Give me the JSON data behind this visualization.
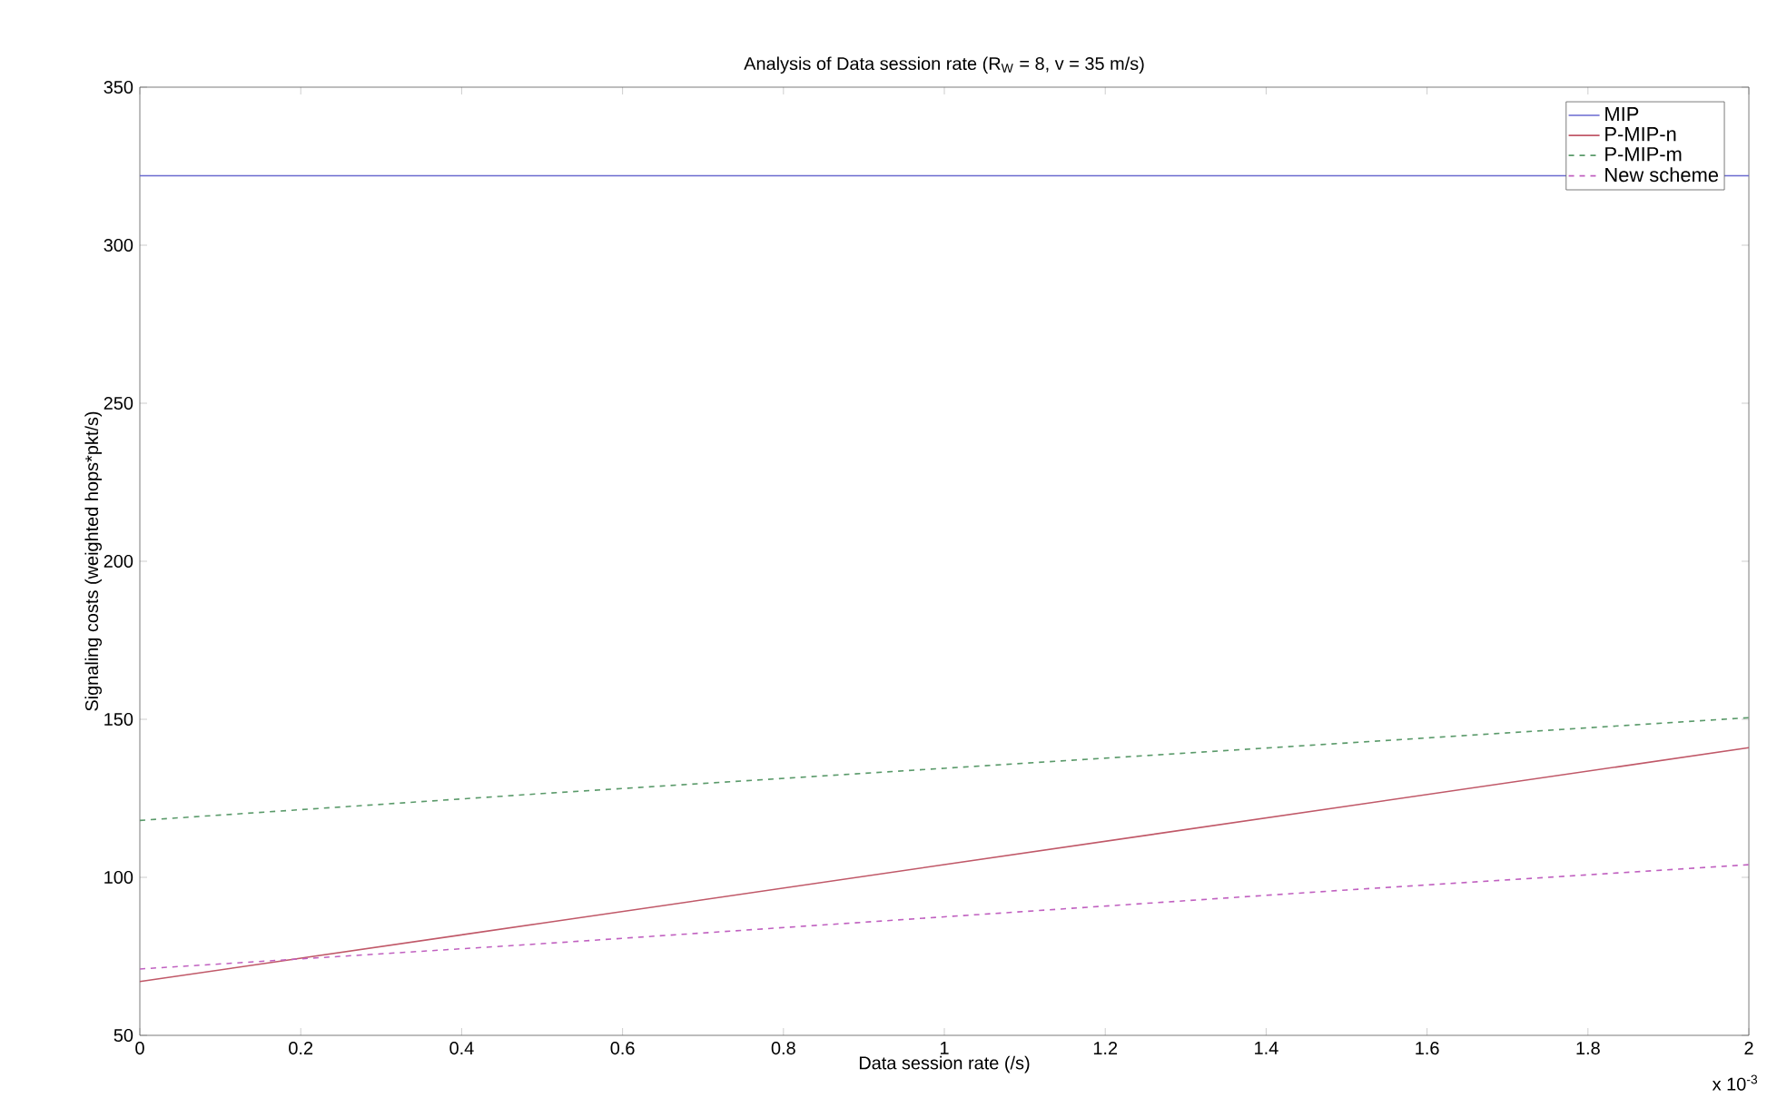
{
  "chart_data": {
    "type": "line",
    "title": "Analysis of Data session rate (R$_{W}$ = 8, v = 35 m/s)",
    "xlabel": "Data session rate (/s)",
    "ylabel": "Signaling costs (weighted hops*pkt/s)",
    "x": [
      0,
      0.5,
      1,
      1.5,
      2
    ],
    "series": [
      {
        "name": "MIP",
        "color": "#6a6ad0",
        "values": [
          322,
          322,
          322,
          322,
          322
        ],
        "line_style": "solid"
      },
      {
        "name": "P-MIP-n",
        "color": "#c05868",
        "values": [
          67,
          85.5,
          104,
          122.5,
          141
        ],
        "line_style": "solid"
      },
      {
        "name": "P-MIP-m",
        "color": "#5a9a6a",
        "values": [
          118,
          126.5,
          134.5,
          142.5,
          150.5
        ],
        "line_style": "dashed"
      },
      {
        "name": "New scheme",
        "color": "#c060c0",
        "values": [
          71,
          79,
          87.5,
          96,
          104
        ],
        "line_style": "dashed"
      }
    ],
    "xlim": [
      0,
      2
    ],
    "ylim": [
      50,
      350
    ],
    "xticks": [
      0,
      0.2,
      0.4,
      0.6,
      0.8,
      1,
      1.2,
      1.4,
      1.6,
      1.8,
      2
    ],
    "yticks": [
      50,
      100,
      150,
      200,
      250,
      300,
      350
    ],
    "annotations": [
      "x 10$^{-3}$"
    ],
    "legend": "top right",
    "grid": false,
    "marker": "none"
  }
}
